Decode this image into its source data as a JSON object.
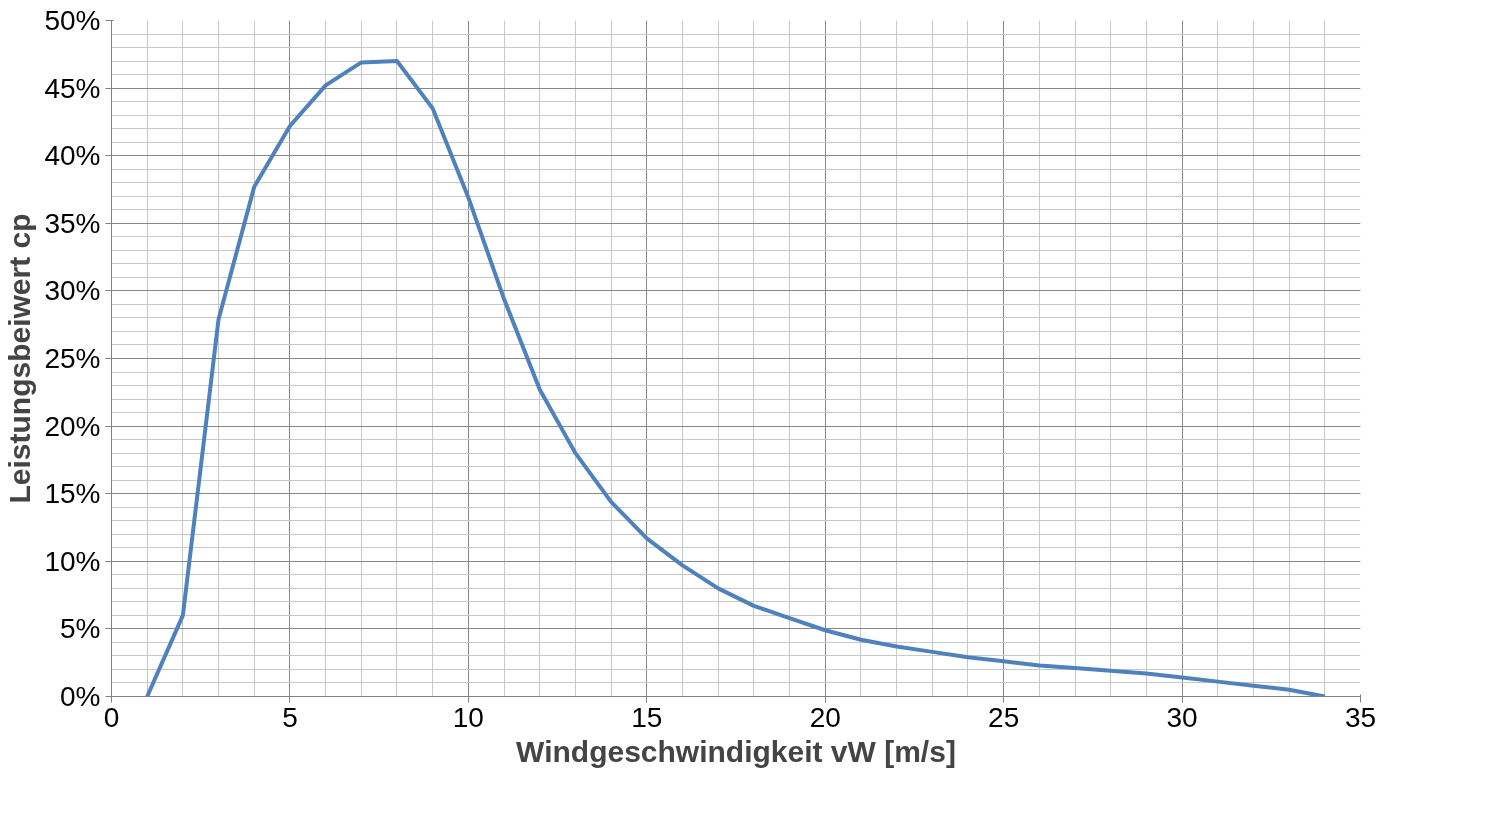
{
  "chart_data": {
    "type": "line",
    "xlabel": "Windgeschwindigkeit vW [m/s]",
    "ylabel": "Leistungsbeiwert cp",
    "x": [
      1,
      2,
      3,
      4,
      5,
      6,
      7,
      8,
      9,
      10,
      11,
      12,
      13,
      14,
      15,
      16,
      17,
      18,
      19,
      20,
      21,
      22,
      23,
      24,
      25,
      26,
      27,
      28,
      29,
      30,
      31,
      32,
      33,
      34
    ],
    "series": [
      {
        "color": "#4f81bd",
        "values": [
          0,
          6,
          27.9,
          37.7,
          42.2,
          45.2,
          46.9,
          47.0,
          43.5,
          36.9,
          29.4,
          22.7,
          18.0,
          14.4,
          11.7,
          9.7,
          8.0,
          6.7,
          5.8,
          4.9,
          4.2,
          3.7,
          3.3,
          2.9,
          2.6,
          2.3,
          2.1,
          1.9,
          1.7,
          1.4,
          1.1,
          0.8,
          0.5,
          0
        ]
      }
    ],
    "xlim": [
      0,
      35
    ],
    "xticks": [
      0,
      5,
      10,
      15,
      20,
      25,
      30,
      35
    ],
    "ylim": [
      0,
      50
    ],
    "yticks": [
      {
        "value": 0,
        "label": "0%"
      },
      {
        "value": 5,
        "label": "5%"
      },
      {
        "value": 10,
        "label": "10%"
      },
      {
        "value": 15,
        "label": "15%"
      },
      {
        "value": 20,
        "label": "20%"
      },
      {
        "value": 25,
        "label": "25%"
      },
      {
        "value": 30,
        "label": "30%"
      },
      {
        "value": 35,
        "label": "35%"
      },
      {
        "value": 40,
        "label": "40%"
      },
      {
        "value": 45,
        "label": "45%"
      },
      {
        "value": 50,
        "label": "50%"
      }
    ],
    "grid": true,
    "marker": "none",
    "line_style": "solid"
  }
}
